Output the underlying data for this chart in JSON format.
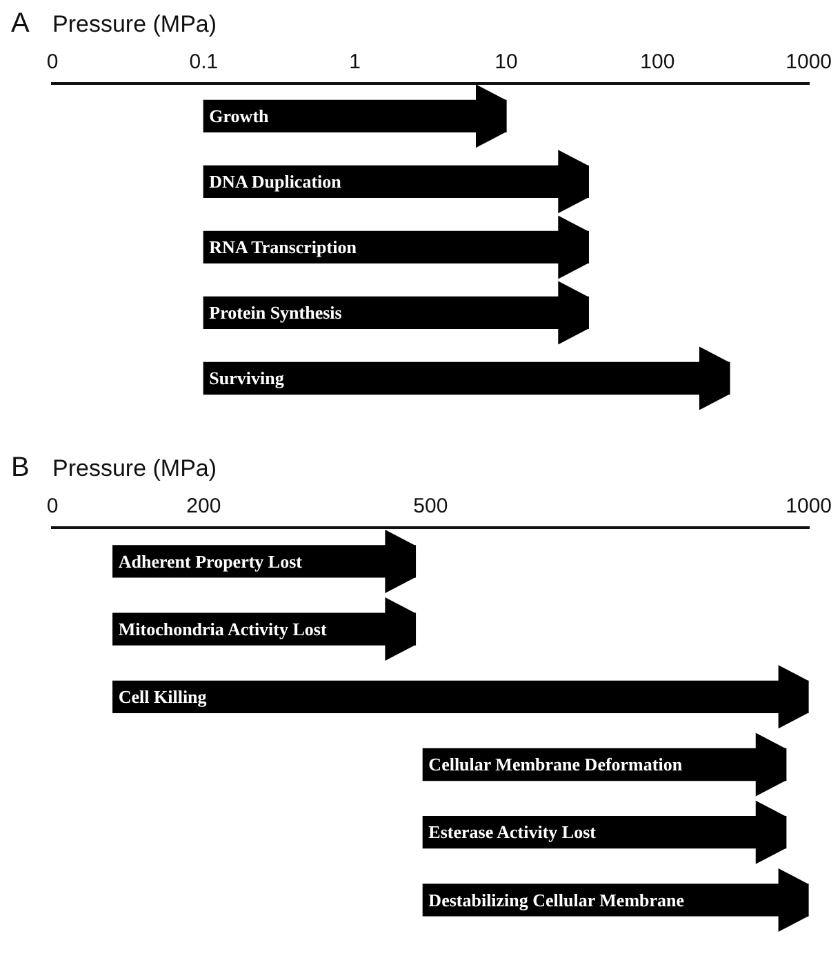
{
  "chart_data": [
    {
      "type": "bar",
      "orientation": "horizontal",
      "title": "A",
      "xlabel": "Pressure (MPa)",
      "log": "x",
      "color": "#000000",
      "categories": [
        "Growth",
        "DNA Duplication",
        "RNA Transcription",
        "Protein Synthesis",
        "Surviving"
      ],
      "base": [
        0.1,
        0.1,
        0.1,
        0.1,
        0.1
      ],
      "values": [
        9.9,
        34.9,
        34.9,
        34.9,
        299.9
      ],
      "xlim": [
        0,
        1000
      ],
      "xticks": [
        0,
        0.1,
        1,
        10,
        100,
        1000
      ]
    },
    {
      "type": "bar",
      "orientation": "horizontal",
      "title": "B",
      "xlabel": "Pressure (MPa)",
      "color": "#000000",
      "categories": [
        "Adherent Property Lost",
        "Mitochondria Activity Lost",
        "Cell Killing",
        "Cellular Membrane Deformation",
        "Esterase Activity Lost",
        "Destabilizing Cellular Membrane"
      ],
      "base": [
        80,
        80,
        80,
        490,
        490,
        490
      ],
      "values": [
        400,
        400,
        920,
        480,
        480,
        510
      ],
      "xlim": [
        0,
        1000
      ],
      "xticks": [
        0,
        200,
        500,
        1000
      ]
    }
  ]
}
